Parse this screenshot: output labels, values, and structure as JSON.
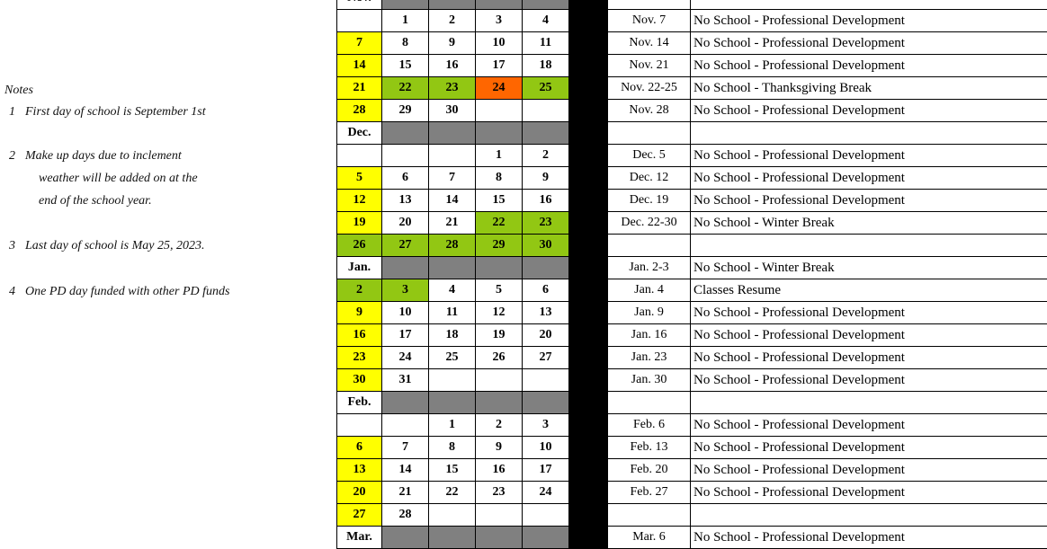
{
  "colors": {
    "y": "#ffff00",
    "g": "#92c713",
    "o": "#ff6600",
    "gray": "#808080",
    "black": "#000000"
  },
  "notes": {
    "title": "Notes",
    "items": [
      {
        "num": "1",
        "lines": [
          "First day of school is September 1st"
        ]
      },
      {
        "num": "2",
        "lines": [
          "Make up days due to inclement",
          "weather will be added on at the",
          "end of the school year."
        ]
      },
      {
        "num": "3",
        "lines": [
          "Last day of school is May 25, 2023."
        ]
      },
      {
        "num": "4",
        "lines": [
          "One PD day funded with other PD funds"
        ]
      }
    ]
  },
  "rows": [
    {
      "month": "Nov.",
      "date": "",
      "desc": ""
    },
    {
      "days": [
        [
          "",
          ""
        ],
        [
          "1",
          ""
        ],
        [
          "2",
          ""
        ],
        [
          "3",
          ""
        ],
        [
          "4",
          ""
        ]
      ],
      "date": "Nov. 7",
      "desc": "No School - Professional Development"
    },
    {
      "days": [
        [
          "7",
          "y"
        ],
        [
          "8",
          ""
        ],
        [
          "9",
          ""
        ],
        [
          "10",
          ""
        ],
        [
          "11",
          ""
        ]
      ],
      "date": "Nov. 14",
      "desc": "No School - Professional Development"
    },
    {
      "days": [
        [
          "14",
          "y"
        ],
        [
          "15",
          ""
        ],
        [
          "16",
          ""
        ],
        [
          "17",
          ""
        ],
        [
          "18",
          ""
        ]
      ],
      "date": "Nov. 21",
      "desc": "No School - Professional Development"
    },
    {
      "days": [
        [
          "21",
          "y"
        ],
        [
          "22",
          "g"
        ],
        [
          "23",
          "g"
        ],
        [
          "24",
          "o"
        ],
        [
          "25",
          "g"
        ]
      ],
      "date": "Nov. 22-25",
      "desc": "No School - Thanksgiving Break"
    },
    {
      "days": [
        [
          "28",
          "y"
        ],
        [
          "29",
          ""
        ],
        [
          "30",
          ""
        ],
        [
          "",
          ""
        ],
        [
          "",
          ""
        ]
      ],
      "date": "Nov. 28",
      "desc": "No School - Professional Development"
    },
    {
      "month": "Dec.",
      "date": "",
      "desc": ""
    },
    {
      "days": [
        [
          "",
          ""
        ],
        [
          "",
          ""
        ],
        [
          "",
          ""
        ],
        [
          "1",
          ""
        ],
        [
          "2",
          ""
        ]
      ],
      "date": "Dec. 5",
      "desc": "No School - Professional Development"
    },
    {
      "days": [
        [
          "5",
          "y"
        ],
        [
          "6",
          ""
        ],
        [
          "7",
          ""
        ],
        [
          "8",
          ""
        ],
        [
          "9",
          ""
        ]
      ],
      "date": "Dec. 12",
      "desc": "No School - Professional Development"
    },
    {
      "days": [
        [
          "12",
          "y"
        ],
        [
          "13",
          ""
        ],
        [
          "14",
          ""
        ],
        [
          "15",
          ""
        ],
        [
          "16",
          ""
        ]
      ],
      "date": "Dec. 19",
      "desc": "No School - Professional Development"
    },
    {
      "days": [
        [
          "19",
          "y"
        ],
        [
          "20",
          ""
        ],
        [
          "21",
          ""
        ],
        [
          "22",
          "g"
        ],
        [
          "23",
          "g"
        ]
      ],
      "date": "Dec. 22-30",
      "desc": "No School - Winter Break"
    },
    {
      "days": [
        [
          "26",
          "g"
        ],
        [
          "27",
          "g"
        ],
        [
          "28",
          "g"
        ],
        [
          "29",
          "g"
        ],
        [
          "30",
          "g"
        ]
      ],
      "date": "",
      "desc": ""
    },
    {
      "month": "Jan.",
      "date": "Jan. 2-3",
      "desc": "No School - Winter Break"
    },
    {
      "days": [
        [
          "2",
          "g"
        ],
        [
          "3",
          "g"
        ],
        [
          "4",
          ""
        ],
        [
          "5",
          ""
        ],
        [
          "6",
          ""
        ]
      ],
      "date": "Jan. 4",
      "desc": "Classes Resume"
    },
    {
      "days": [
        [
          "9",
          "y"
        ],
        [
          "10",
          ""
        ],
        [
          "11",
          ""
        ],
        [
          "12",
          ""
        ],
        [
          "13",
          ""
        ]
      ],
      "date": "Jan. 9",
      "desc": "No School - Professional Development"
    },
    {
      "days": [
        [
          "16",
          "y"
        ],
        [
          "17",
          ""
        ],
        [
          "18",
          ""
        ],
        [
          "19",
          ""
        ],
        [
          "20",
          ""
        ]
      ],
      "date": "Jan. 16",
      "desc": "No School - Professional Development"
    },
    {
      "days": [
        [
          "23",
          "y"
        ],
        [
          "24",
          ""
        ],
        [
          "25",
          ""
        ],
        [
          "26",
          ""
        ],
        [
          "27",
          ""
        ]
      ],
      "date": "Jan. 23",
      "desc": "No School - Professional Development"
    },
    {
      "days": [
        [
          "30",
          "y"
        ],
        [
          "31",
          ""
        ],
        [
          "",
          ""
        ],
        [
          "",
          ""
        ],
        [
          "",
          ""
        ]
      ],
      "date": "Jan. 30",
      "desc": "No School - Professional Development"
    },
    {
      "month": "Feb.",
      "date": "",
      "desc": ""
    },
    {
      "days": [
        [
          "",
          ""
        ],
        [
          "",
          ""
        ],
        [
          "1",
          ""
        ],
        [
          "2",
          ""
        ],
        [
          "3",
          ""
        ]
      ],
      "date": "Feb. 6",
      "desc": "No School - Professional Development"
    },
    {
      "days": [
        [
          "6",
          "y"
        ],
        [
          "7",
          ""
        ],
        [
          "8",
          ""
        ],
        [
          "9",
          ""
        ],
        [
          "10",
          ""
        ]
      ],
      "date": "Feb. 13",
      "desc": "No School - Professional Development"
    },
    {
      "days": [
        [
          "13",
          "y"
        ],
        [
          "14",
          ""
        ],
        [
          "15",
          ""
        ],
        [
          "16",
          ""
        ],
        [
          "17",
          ""
        ]
      ],
      "date": "Feb. 20",
      "desc": "No School - Professional Development"
    },
    {
      "days": [
        [
          "20",
          "y"
        ],
        [
          "21",
          ""
        ],
        [
          "22",
          ""
        ],
        [
          "23",
          ""
        ],
        [
          "24",
          ""
        ]
      ],
      "date": "Feb. 27",
      "desc": "No School - Professional Development"
    },
    {
      "days": [
        [
          "27",
          "y"
        ],
        [
          "28",
          ""
        ],
        [
          "",
          ""
        ],
        [
          "",
          ""
        ],
        [
          "",
          ""
        ]
      ],
      "date": "",
      "desc": ""
    },
    {
      "month": "Mar.",
      "date": "Mar. 6",
      "desc": "No School - Professional Development"
    }
  ]
}
